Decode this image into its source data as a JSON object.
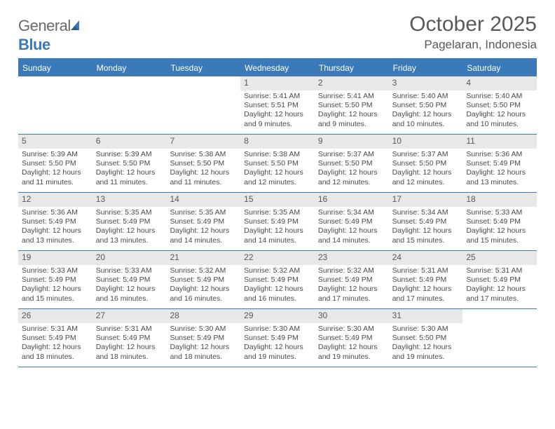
{
  "branding": {
    "logo_word1": "General",
    "logo_word2": "Blue",
    "accent_color": "#3a7ab8",
    "text_color": "#6a6a6a"
  },
  "header": {
    "title": "October 2025",
    "location": "Pagelaran, Indonesia"
  },
  "calendar": {
    "day_names": [
      "Sunday",
      "Monday",
      "Tuesday",
      "Wednesday",
      "Thursday",
      "Friday",
      "Saturday"
    ],
    "header_bg": "#3a7ab8",
    "header_fg": "#ffffff",
    "daynum_bg": "#e8e8e8",
    "text_color": "#4a4a4a",
    "weeks": [
      [
        null,
        null,
        null,
        {
          "n": "1",
          "sr": "Sunrise: 5:41 AM",
          "ss": "Sunset: 5:51 PM",
          "d1": "Daylight: 12 hours",
          "d2": "and 9 minutes."
        },
        {
          "n": "2",
          "sr": "Sunrise: 5:41 AM",
          "ss": "Sunset: 5:50 PM",
          "d1": "Daylight: 12 hours",
          "d2": "and 9 minutes."
        },
        {
          "n": "3",
          "sr": "Sunrise: 5:40 AM",
          "ss": "Sunset: 5:50 PM",
          "d1": "Daylight: 12 hours",
          "d2": "and 10 minutes."
        },
        {
          "n": "4",
          "sr": "Sunrise: 5:40 AM",
          "ss": "Sunset: 5:50 PM",
          "d1": "Daylight: 12 hours",
          "d2": "and 10 minutes."
        }
      ],
      [
        {
          "n": "5",
          "sr": "Sunrise: 5:39 AM",
          "ss": "Sunset: 5:50 PM",
          "d1": "Daylight: 12 hours",
          "d2": "and 11 minutes."
        },
        {
          "n": "6",
          "sr": "Sunrise: 5:39 AM",
          "ss": "Sunset: 5:50 PM",
          "d1": "Daylight: 12 hours",
          "d2": "and 11 minutes."
        },
        {
          "n": "7",
          "sr": "Sunrise: 5:38 AM",
          "ss": "Sunset: 5:50 PM",
          "d1": "Daylight: 12 hours",
          "d2": "and 11 minutes."
        },
        {
          "n": "8",
          "sr": "Sunrise: 5:38 AM",
          "ss": "Sunset: 5:50 PM",
          "d1": "Daylight: 12 hours",
          "d2": "and 12 minutes."
        },
        {
          "n": "9",
          "sr": "Sunrise: 5:37 AM",
          "ss": "Sunset: 5:50 PM",
          "d1": "Daylight: 12 hours",
          "d2": "and 12 minutes."
        },
        {
          "n": "10",
          "sr": "Sunrise: 5:37 AM",
          "ss": "Sunset: 5:50 PM",
          "d1": "Daylight: 12 hours",
          "d2": "and 12 minutes."
        },
        {
          "n": "11",
          "sr": "Sunrise: 5:36 AM",
          "ss": "Sunset: 5:49 PM",
          "d1": "Daylight: 12 hours",
          "d2": "and 13 minutes."
        }
      ],
      [
        {
          "n": "12",
          "sr": "Sunrise: 5:36 AM",
          "ss": "Sunset: 5:49 PM",
          "d1": "Daylight: 12 hours",
          "d2": "and 13 minutes."
        },
        {
          "n": "13",
          "sr": "Sunrise: 5:35 AM",
          "ss": "Sunset: 5:49 PM",
          "d1": "Daylight: 12 hours",
          "d2": "and 13 minutes."
        },
        {
          "n": "14",
          "sr": "Sunrise: 5:35 AM",
          "ss": "Sunset: 5:49 PM",
          "d1": "Daylight: 12 hours",
          "d2": "and 14 minutes."
        },
        {
          "n": "15",
          "sr": "Sunrise: 5:35 AM",
          "ss": "Sunset: 5:49 PM",
          "d1": "Daylight: 12 hours",
          "d2": "and 14 minutes."
        },
        {
          "n": "16",
          "sr": "Sunrise: 5:34 AM",
          "ss": "Sunset: 5:49 PM",
          "d1": "Daylight: 12 hours",
          "d2": "and 14 minutes."
        },
        {
          "n": "17",
          "sr": "Sunrise: 5:34 AM",
          "ss": "Sunset: 5:49 PM",
          "d1": "Daylight: 12 hours",
          "d2": "and 15 minutes."
        },
        {
          "n": "18",
          "sr": "Sunrise: 5:33 AM",
          "ss": "Sunset: 5:49 PM",
          "d1": "Daylight: 12 hours",
          "d2": "and 15 minutes."
        }
      ],
      [
        {
          "n": "19",
          "sr": "Sunrise: 5:33 AM",
          "ss": "Sunset: 5:49 PM",
          "d1": "Daylight: 12 hours",
          "d2": "and 15 minutes."
        },
        {
          "n": "20",
          "sr": "Sunrise: 5:33 AM",
          "ss": "Sunset: 5:49 PM",
          "d1": "Daylight: 12 hours",
          "d2": "and 16 minutes."
        },
        {
          "n": "21",
          "sr": "Sunrise: 5:32 AM",
          "ss": "Sunset: 5:49 PM",
          "d1": "Daylight: 12 hours",
          "d2": "and 16 minutes."
        },
        {
          "n": "22",
          "sr": "Sunrise: 5:32 AM",
          "ss": "Sunset: 5:49 PM",
          "d1": "Daylight: 12 hours",
          "d2": "and 16 minutes."
        },
        {
          "n": "23",
          "sr": "Sunrise: 5:32 AM",
          "ss": "Sunset: 5:49 PM",
          "d1": "Daylight: 12 hours",
          "d2": "and 17 minutes."
        },
        {
          "n": "24",
          "sr": "Sunrise: 5:31 AM",
          "ss": "Sunset: 5:49 PM",
          "d1": "Daylight: 12 hours",
          "d2": "and 17 minutes."
        },
        {
          "n": "25",
          "sr": "Sunrise: 5:31 AM",
          "ss": "Sunset: 5:49 PM",
          "d1": "Daylight: 12 hours",
          "d2": "and 17 minutes."
        }
      ],
      [
        {
          "n": "26",
          "sr": "Sunrise: 5:31 AM",
          "ss": "Sunset: 5:49 PM",
          "d1": "Daylight: 12 hours",
          "d2": "and 18 minutes."
        },
        {
          "n": "27",
          "sr": "Sunrise: 5:31 AM",
          "ss": "Sunset: 5:49 PM",
          "d1": "Daylight: 12 hours",
          "d2": "and 18 minutes."
        },
        {
          "n": "28",
          "sr": "Sunrise: 5:30 AM",
          "ss": "Sunset: 5:49 PM",
          "d1": "Daylight: 12 hours",
          "d2": "and 18 minutes."
        },
        {
          "n": "29",
          "sr": "Sunrise: 5:30 AM",
          "ss": "Sunset: 5:49 PM",
          "d1": "Daylight: 12 hours",
          "d2": "and 19 minutes."
        },
        {
          "n": "30",
          "sr": "Sunrise: 5:30 AM",
          "ss": "Sunset: 5:49 PM",
          "d1": "Daylight: 12 hours",
          "d2": "and 19 minutes."
        },
        {
          "n": "31",
          "sr": "Sunrise: 5:30 AM",
          "ss": "Sunset: 5:50 PM",
          "d1": "Daylight: 12 hours",
          "d2": "and 19 minutes."
        },
        null
      ]
    ]
  }
}
